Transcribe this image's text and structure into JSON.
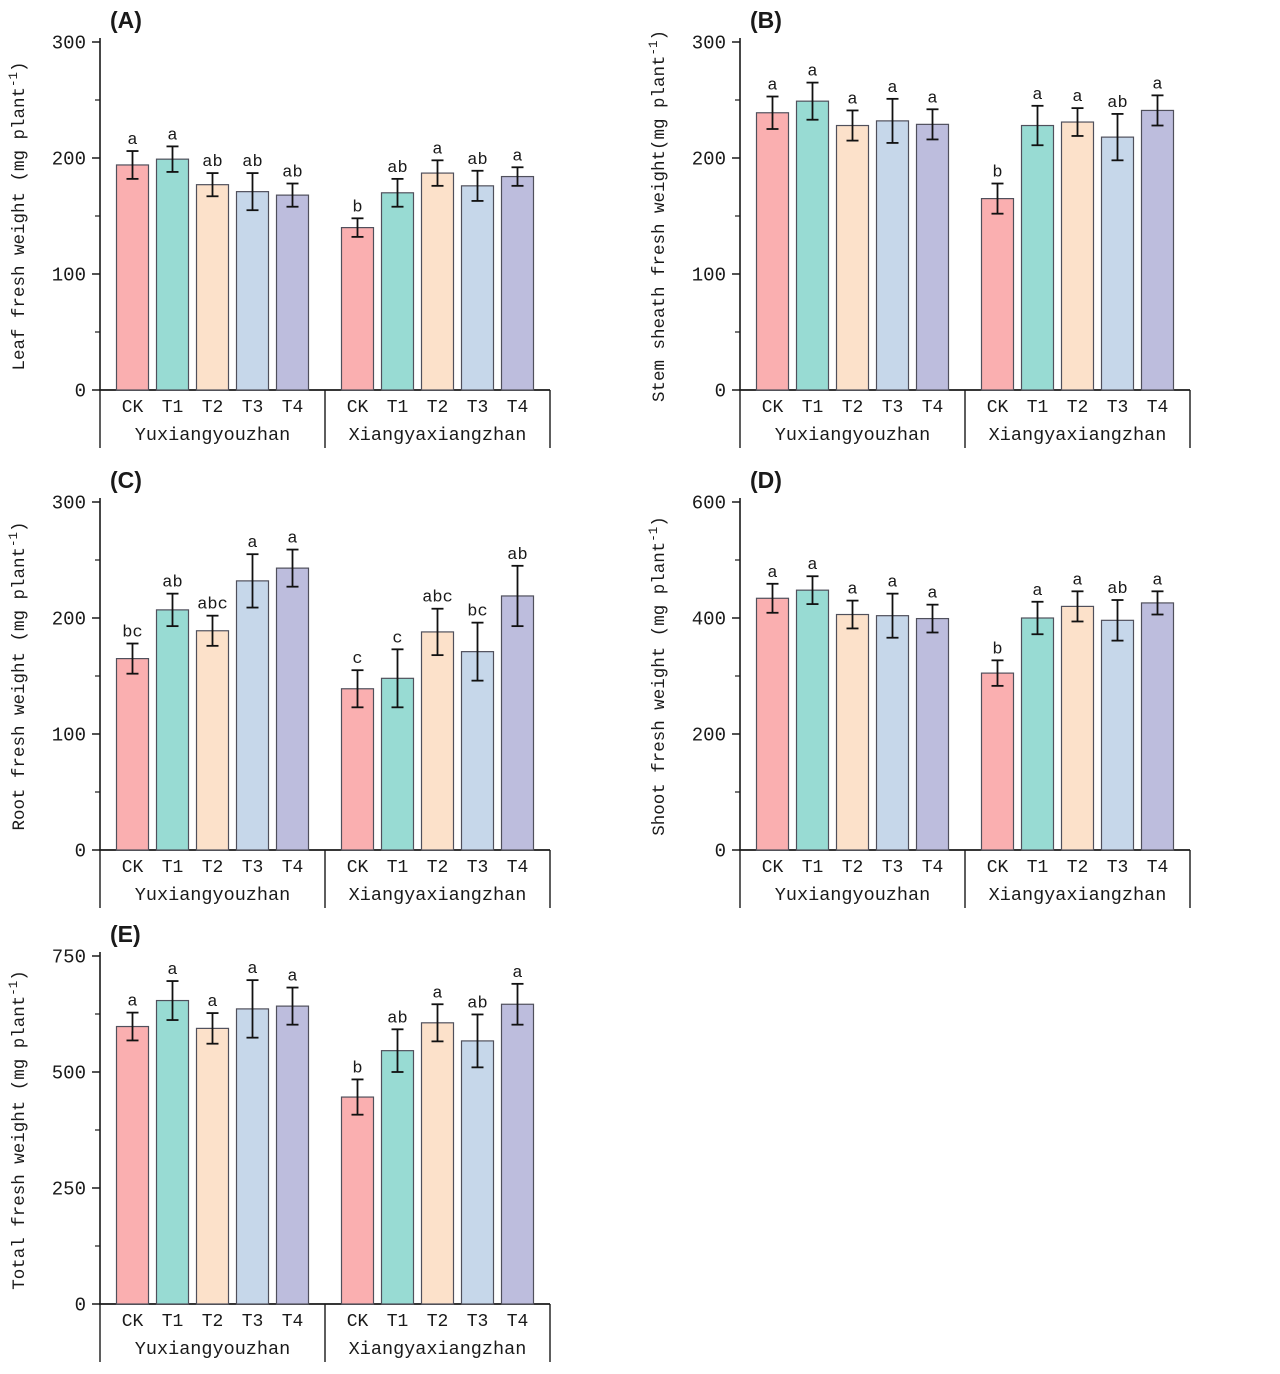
{
  "figure": {
    "background": "#ffffff",
    "varieties": [
      "Yuxiangyouzhan",
      "Xiangyaxiangzhan"
    ],
    "treatments": [
      "CK",
      "T1",
      "T2",
      "T3",
      "T4"
    ],
    "bar_colors": {
      "CK": "#FAAFB0",
      "T1": "#98DBD3",
      "T2": "#FCE1CA",
      "T3": "#C6D7EA",
      "T4": "#BDBDDD"
    },
    "bar_edge_color": "#50505c",
    "axis_color": "#1a1a1a",
    "error_bar_color": "#111111",
    "text_color": "#1a1a1a"
  },
  "chart_data": [
    {
      "panel": "(A)",
      "type": "bar",
      "ylabel": "Leaf fresh weight (mg plant⁻¹)",
      "ylim": [
        0,
        300
      ],
      "yticks": [
        0,
        100,
        200,
        300
      ],
      "categories": [
        "CK",
        "T1",
        "T2",
        "T3",
        "T4"
      ],
      "groups": [
        {
          "name": "Yuxiangyouzhan",
          "values": [
            194,
            199,
            177,
            171,
            168
          ],
          "errors": [
            12,
            11,
            10,
            16,
            10
          ],
          "sig_letters": [
            "a",
            "a",
            "ab",
            "ab",
            "ab"
          ]
        },
        {
          "name": "Xiangyaxiangzhan",
          "values": [
            140,
            170,
            187,
            176,
            184
          ],
          "errors": [
            8,
            12,
            11,
            13,
            8
          ],
          "sig_letters": [
            "b",
            "ab",
            "a",
            "ab",
            "a"
          ]
        }
      ]
    },
    {
      "panel": "(B)",
      "type": "bar",
      "ylabel": "Stem sheath fresh weight(mg plant⁻¹)",
      "ylim": [
        0,
        300
      ],
      "yticks": [
        0,
        100,
        200,
        300
      ],
      "categories": [
        "CK",
        "T1",
        "T2",
        "T3",
        "T4"
      ],
      "groups": [
        {
          "name": "Yuxiangyouzhan",
          "values": [
            239,
            249,
            228,
            232,
            229
          ],
          "errors": [
            14,
            16,
            13,
            19,
            13
          ],
          "sig_letters": [
            "a",
            "a",
            "a",
            "a",
            "a"
          ]
        },
        {
          "name": "Xiangyaxiangzhan",
          "values": [
            165,
            228,
            231,
            218,
            241
          ],
          "errors": [
            13,
            17,
            12,
            20,
            13
          ],
          "sig_letters": [
            "b",
            "a",
            "a",
            "ab",
            "a"
          ]
        }
      ]
    },
    {
      "panel": "(C)",
      "type": "bar",
      "ylabel": "Root fresh weight (mg plant⁻¹)",
      "ylim": [
        0,
        300
      ],
      "yticks": [
        0,
        100,
        200,
        300
      ],
      "categories": [
        "CK",
        "T1",
        "T2",
        "T3",
        "T4"
      ],
      "groups": [
        {
          "name": "Yuxiangyouzhan",
          "values": [
            165,
            207,
            189,
            232,
            243
          ],
          "errors": [
            13,
            14,
            13,
            23,
            16
          ],
          "sig_letters": [
            "bc",
            "ab",
            "abc",
            "a",
            "a"
          ]
        },
        {
          "name": "Xiangyaxiangzhan",
          "values": [
            139,
            148,
            188,
            171,
            219
          ],
          "errors": [
            16,
            25,
            20,
            25,
            26
          ],
          "sig_letters": [
            "c",
            "c",
            "abc",
            "bc",
            "ab"
          ]
        }
      ]
    },
    {
      "panel": "(D)",
      "type": "bar",
      "ylabel": "Shoot fresh weight (mg plant⁻¹)",
      "ylim": [
        0,
        600
      ],
      "yticks": [
        0,
        200,
        400,
        600
      ],
      "categories": [
        "CK",
        "T1",
        "T2",
        "T3",
        "T4"
      ],
      "groups": [
        {
          "name": "Yuxiangyouzhan",
          "values": [
            434,
            448,
            406,
            404,
            399
          ],
          "errors": [
            25,
            24,
            24,
            38,
            24
          ],
          "sig_letters": [
            "a",
            "a",
            "a",
            "a",
            "a"
          ]
        },
        {
          "name": "Xiangyaxiangzhan",
          "values": [
            305,
            400,
            420,
            396,
            426
          ],
          "errors": [
            22,
            28,
            26,
            35,
            20
          ],
          "sig_letters": [
            "b",
            "a",
            "a",
            "ab",
            "a"
          ]
        }
      ]
    },
    {
      "panel": "(E)",
      "type": "bar",
      "ylabel": "Total fresh weight (mg plant⁻¹)",
      "ylim": [
        0,
        750
      ],
      "yticks": [
        0,
        250,
        500,
        750
      ],
      "categories": [
        "CK",
        "T1",
        "T2",
        "T3",
        "T4"
      ],
      "groups": [
        {
          "name": "Yuxiangyouzhan",
          "values": [
            598,
            654,
            594,
            636,
            642
          ],
          "errors": [
            30,
            42,
            33,
            62,
            40
          ],
          "sig_letters": [
            "a",
            "a",
            "a",
            "a",
            "a"
          ]
        },
        {
          "name": "Xiangyaxiangzhan",
          "values": [
            446,
            546,
            606,
            567,
            646
          ],
          "errors": [
            38,
            46,
            40,
            57,
            44
          ],
          "sig_letters": [
            "b",
            "ab",
            "a",
            "ab",
            "a"
          ]
        }
      ]
    }
  ]
}
